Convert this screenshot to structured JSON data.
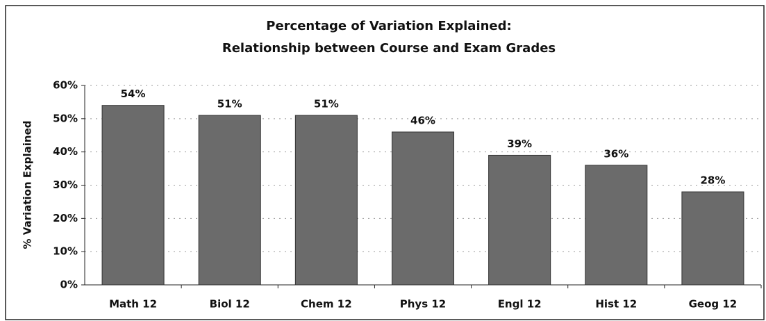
{
  "chart_data": {
    "type": "bar",
    "title": "Percentage of Variation Explained:",
    "subtitle": "Relationship between Course and Exam Grades",
    "y_label": "% Variation Explained",
    "categories": [
      "Math 12",
      "Biol 12",
      "Chem 12",
      "Phys 12",
      "Engl 12",
      "Hist 12",
      "Geog 12"
    ],
    "values": [
      54,
      51,
      51,
      46,
      39,
      36,
      28
    ],
    "value_labels": [
      "54%",
      "51%",
      "51%",
      "46%",
      "39%",
      "36%",
      "28%"
    ],
    "color": "#6b6b6b",
    "ylim": [
      0,
      60
    ],
    "yticks": [
      {
        "value": 0,
        "label": "0%"
      },
      {
        "value": 10,
        "label": "10%"
      },
      {
        "value": 20,
        "label": "20%"
      },
      {
        "value": 30,
        "label": "30%"
      },
      {
        "value": 40,
        "label": "40%"
      },
      {
        "value": 50,
        "label": "50%"
      },
      {
        "value": 60,
        "label": "60%"
      }
    ],
    "grid": true
  }
}
